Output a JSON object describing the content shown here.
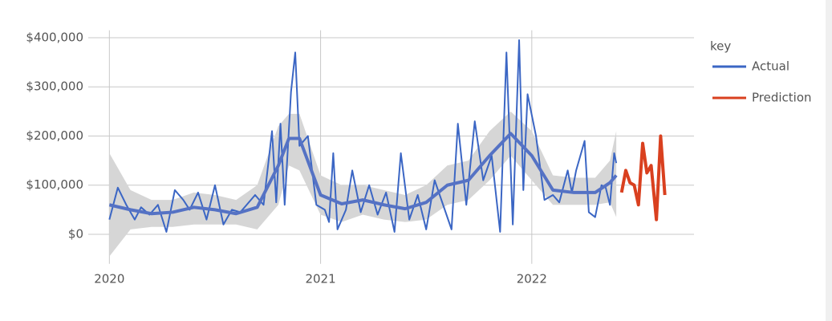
{
  "chart_data": {
    "type": "line",
    "x": [
      2020.0,
      2020.04,
      2020.08,
      2020.12,
      2020.15,
      2020.19,
      2020.23,
      2020.27,
      2020.31,
      2020.35,
      2020.38,
      2020.42,
      2020.46,
      2020.5,
      2020.54,
      2020.58,
      2020.62,
      2020.65,
      2020.69,
      2020.73,
      2020.77,
      2020.79,
      2020.81,
      2020.83,
      2020.86,
      2020.88,
      2020.9,
      2020.94,
      2020.98,
      2021.02,
      2021.04,
      2021.06,
      2021.08,
      2021.12,
      2021.15,
      2021.19,
      2021.23,
      2021.27,
      2021.31,
      2021.35,
      2021.38,
      2021.42,
      2021.46,
      2021.5,
      2021.54,
      2021.58,
      2021.62,
      2021.65,
      2021.69,
      2021.73,
      2021.77,
      2021.81,
      2021.85,
      2021.88,
      2021.91,
      2021.94,
      2021.96,
      2021.98,
      2022.02,
      2022.06,
      2022.1,
      2022.13,
      2022.17,
      2022.19,
      2022.21,
      2022.25,
      2022.27,
      2022.3,
      2022.33,
      2022.35,
      2022.37,
      2022.39,
      2022.4
    ],
    "series": [
      {
        "name": "Actual",
        "color": "#3b66c4",
        "values": [
          30000,
          95000,
          60000,
          30000,
          55000,
          40000,
          60000,
          5000,
          90000,
          70000,
          50000,
          85000,
          30000,
          100000,
          20000,
          50000,
          45000,
          60000,
          80000,
          60000,
          210000,
          65000,
          225000,
          60000,
          290000,
          370000,
          180000,
          200000,
          60000,
          50000,
          25000,
          165000,
          10000,
          50000,
          130000,
          45000,
          100000,
          40000,
          85000,
          5000,
          165000,
          30000,
          80000,
          10000,
          110000,
          60000,
          10000,
          225000,
          60000,
          230000,
          110000,
          160000,
          5000,
          370000,
          20000,
          395000,
          90000,
          285000,
          200000,
          70000,
          80000,
          65000,
          130000,
          85000,
          130000,
          190000,
          45000,
          35000,
          100000,
          95000,
          60000,
          165000,
          145000
        ]
      },
      {
        "name": "Prediction",
        "color": "#d9401f",
        "x": [
          2022.425,
          2022.445,
          2022.465,
          2022.485,
          2022.505,
          2022.525,
          2022.545,
          2022.565,
          2022.59,
          2022.61,
          2022.63
        ],
        "values": [
          85000,
          130000,
          105000,
          100000,
          60000,
          185000,
          125000,
          140000,
          30000,
          200000,
          80000
        ]
      }
    ],
    "smooth": {
      "color": "#5572c4",
      "x": [
        2020.0,
        2020.1,
        2020.2,
        2020.3,
        2020.4,
        2020.5,
        2020.6,
        2020.7,
        2020.8,
        2020.85,
        2020.9,
        2021.0,
        2021.1,
        2021.2,
        2021.3,
        2021.4,
        2021.5,
        2021.6,
        2021.7,
        2021.8,
        2021.9,
        2022.0,
        2022.1,
        2022.2,
        2022.3,
        2022.37,
        2022.4
      ],
      "values": [
        60000,
        50000,
        42000,
        45000,
        55000,
        50000,
        42000,
        55000,
        140000,
        195000,
        195000,
        80000,
        62000,
        70000,
        60000,
        52000,
        65000,
        100000,
        110000,
        160000,
        205000,
        160000,
        90000,
        85000,
        85000,
        105000,
        120000
      ],
      "lower": [
        -45000,
        10000,
        15000,
        15000,
        20000,
        20000,
        20000,
        10000,
        60000,
        140000,
        130000,
        40000,
        25000,
        40000,
        30000,
        25000,
        30000,
        60000,
        70000,
        110000,
        160000,
        110000,
        60000,
        60000,
        60000,
        65000,
        35000
      ],
      "upper": [
        165000,
        90000,
        70000,
        70000,
        85000,
        80000,
        70000,
        100000,
        220000,
        245000,
        245000,
        120000,
        100000,
        100000,
        90000,
        80000,
        100000,
        140000,
        150000,
        210000,
        250000,
        210000,
        120000,
        115000,
        115000,
        150000,
        210000
      ]
    },
    "band_color": "#d6d6d6",
    "xlim": [
      2019.9,
      2022.768
    ],
    "xticks": [
      2020,
      2021,
      2022
    ],
    "ylim": [
      -60000,
      415000
    ],
    "yticks": [
      {
        "value": 0,
        "label": "$0"
      },
      {
        "value": 100000,
        "label": "$100,000"
      },
      {
        "value": 200000,
        "label": "$200,000"
      },
      {
        "value": 300000,
        "label": "$300,000"
      },
      {
        "value": 400000,
        "label": "$400,000"
      }
    ],
    "grid": true,
    "legend_title": "key",
    "legend": "right"
  }
}
